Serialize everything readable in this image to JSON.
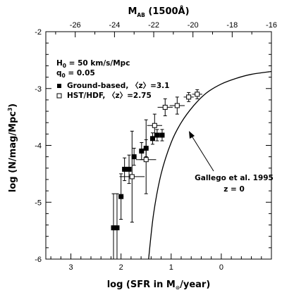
{
  "chart_data": {
    "type": "scatter",
    "x_bottom": {
      "label": "log (SFR in M",
      "label_sub": "⊙",
      "label_end": "/year)",
      "range": [
        3.5,
        -1.0
      ],
      "ticks": [
        3,
        2,
        1,
        0
      ]
    },
    "x_top": {
      "label": "M",
      "label_sub": "AB",
      "label_end": " (1500Å)",
      "range": [
        -27.5,
        -16.0
      ],
      "ticks": [
        -26,
        -24,
        -22,
        -20,
        -18,
        -16
      ]
    },
    "y": {
      "label": "log (N/mag/Mpc",
      "label_sup": "3",
      "label_end": ")",
      "range": [
        -6,
        -2
      ],
      "ticks": [
        -6,
        -5,
        -4,
        -3,
        -2
      ]
    },
    "annotations": {
      "h0_sym": "H",
      "h0_sub": "0",
      "h0_val": " = 50 km/s/Mpc",
      "q0_sym": "q",
      "q0_sub": "0",
      "q0_val": " = 0.05",
      "gallego_line1": "Gallego et al. 1995",
      "gallego_line2": "z = 0"
    },
    "series": [
      {
        "name": "Ground-based, 〈z〉=3.1",
        "marker": "filled-square",
        "points": [
          {
            "x": 2.15,
            "y": -5.45,
            "xerr": 0.05,
            "yerr_up": 0.6,
            "yerr_dn": 0.55
          },
          {
            "x": 2.08,
            "y": -5.45,
            "xerr": 0.05,
            "yerr_up": 0.6,
            "yerr_dn": 0.55
          },
          {
            "x": 2.0,
            "y": -4.9,
            "xerr": 0.05,
            "yerr_up": 0.4,
            "yerr_dn": 0.4
          },
          {
            "x": 1.93,
            "y": -4.42,
            "xerr": 0.05,
            "yerr_up": 0.2,
            "yerr_dn": 0.2
          },
          {
            "x": 1.84,
            "y": -4.42,
            "xerr": 0.05,
            "yerr_up": 0.25,
            "yerr_dn": 0.25
          },
          {
            "x": 1.74,
            "y": -4.2,
            "xerr": 0.05,
            "yerr_up": 0.15,
            "yerr_dn": 0.15
          },
          {
            "x": 1.59,
            "y": -4.1,
            "xerr": 0.05,
            "yerr_up": 0.15,
            "yerr_dn": 0.15
          },
          {
            "x": 1.5,
            "y": -4.05,
            "xerr": 0.05,
            "yerr_up": 0.15,
            "yerr_dn": 0.15
          },
          {
            "x": 1.37,
            "y": -3.88,
            "xerr": 0.05,
            "yerr_up": 0.1,
            "yerr_dn": 0.1
          },
          {
            "x": 1.28,
            "y": -3.82,
            "xerr": 0.05,
            "yerr_up": 0.1,
            "yerr_dn": 0.1
          },
          {
            "x": 1.18,
            "y": -3.82,
            "xerr": 0.05,
            "yerr_up": 0.1,
            "yerr_dn": 0.1
          }
        ]
      },
      {
        "name": "HST/HDF, 〈z〉=2.75",
        "marker": "open-square",
        "points": [
          {
            "x": 1.78,
            "y": -4.55,
            "xerr": 0.25,
            "yerr_up": 0.8,
            "yerr_dn": 0.8
          },
          {
            "x": 1.5,
            "y": -4.25,
            "xerr": 0.2,
            "yerr_up": 0.7,
            "yerr_dn": 0.6
          },
          {
            "x": 1.33,
            "y": -3.65,
            "xerr": 0.15,
            "yerr_up": 0.2,
            "yerr_dn": 0.2
          },
          {
            "x": 1.12,
            "y": -3.33,
            "xerr": 0.15,
            "yerr_up": 0.15,
            "yerr_dn": 0.15
          },
          {
            "x": 0.88,
            "y": -3.3,
            "xerr": 0.15,
            "yerr_up": 0.15,
            "yerr_dn": 0.15
          },
          {
            "x": 0.65,
            "y": -3.15,
            "xerr": 0.1,
            "yerr_up": 0.08,
            "yerr_dn": 0.08
          },
          {
            "x": 0.48,
            "y": -3.1,
            "xerr": 0.1,
            "yerr_up": 0.08,
            "yerr_dn": 0.08
          }
        ]
      },
      {
        "name": "Gallego et al. 1995",
        "marker": "line",
        "points": [
          {
            "x": 1.45,
            "y": -6.0
          },
          {
            "x": 1.35,
            "y": -5.2
          },
          {
            "x": 1.2,
            "y": -4.5
          },
          {
            "x": 1.0,
            "y": -3.95
          },
          {
            "x": 0.8,
            "y": -3.6
          },
          {
            "x": 0.55,
            "y": -3.3
          },
          {
            "x": 0.3,
            "y": -3.08
          },
          {
            "x": 0.0,
            "y": -2.92
          },
          {
            "x": -0.3,
            "y": -2.82
          },
          {
            "x": -0.6,
            "y": -2.75
          },
          {
            "x": -1.0,
            "y": -2.7
          }
        ]
      }
    ]
  }
}
